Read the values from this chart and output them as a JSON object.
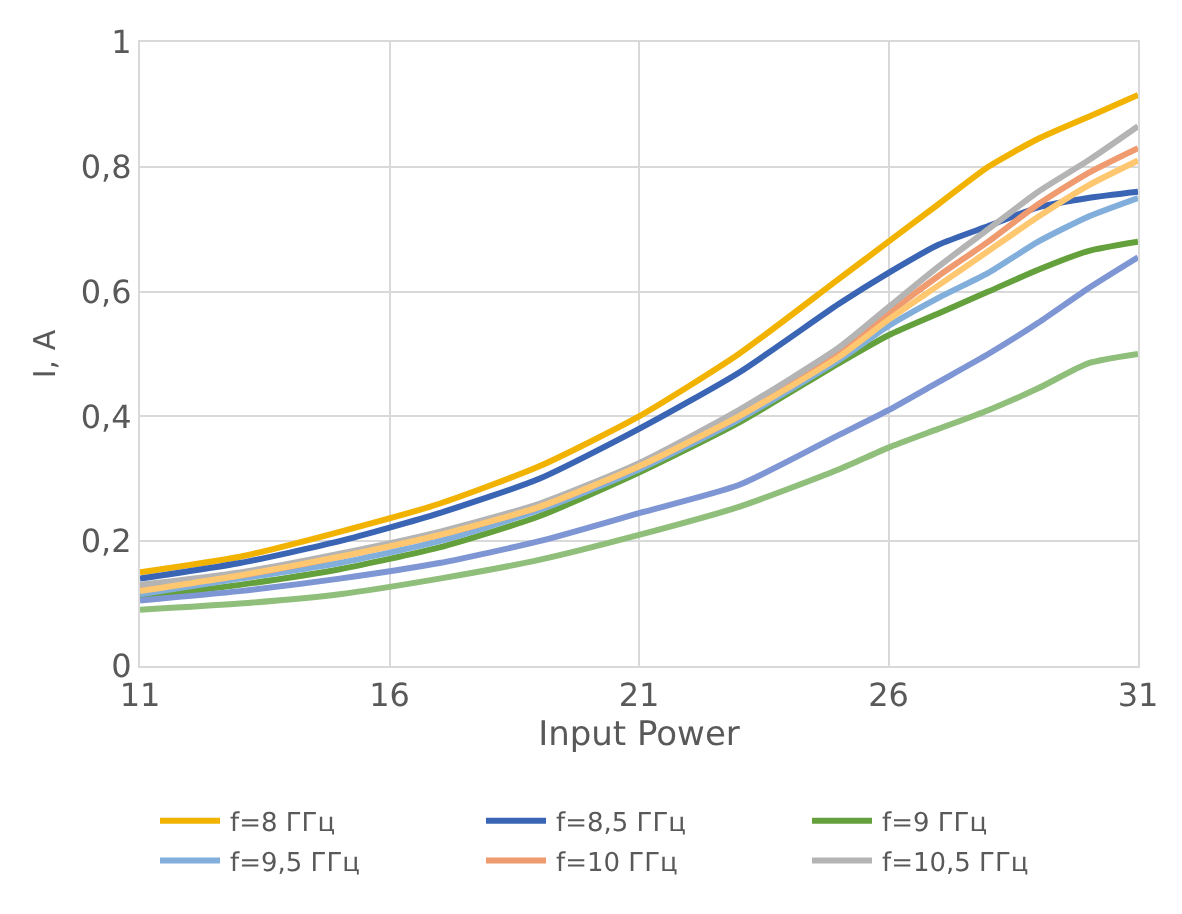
{
  "chart_data": {
    "type": "line",
    "xlabel": "Input Power",
    "ylabel": "I, A",
    "x": [
      11,
      13,
      15,
      17,
      19,
      21,
      23,
      25,
      26,
      27,
      28,
      29,
      30,
      31
    ],
    "xlim": [
      11,
      31
    ],
    "xticks": [
      11,
      16,
      21,
      26,
      31
    ],
    "ylim": [
      0,
      1
    ],
    "yticks": [
      0,
      {
        "value": 0.2,
        "label": "0,2"
      },
      {
        "value": 0.4,
        "label": "0,4"
      },
      {
        "value": 0.6,
        "label": "0,6"
      },
      {
        "value": 0.8,
        "label": "0,8"
      },
      1
    ],
    "grid": true,
    "legend": "bottom",
    "marker": "none",
    "line_style": "solid",
    "series": [
      {
        "name": "f=8 ГГц",
        "color": "#f2b300",
        "values": [
          0.15,
          0.175,
          0.215,
          0.26,
          0.32,
          0.4,
          0.5,
          0.62,
          0.68,
          0.74,
          0.8,
          0.845,
          0.88,
          0.915
        ]
      },
      {
        "name": "f=8,5 ГГц",
        "color": "#3a64b4",
        "values": [
          0.14,
          0.165,
          0.2,
          0.245,
          0.3,
          0.38,
          0.47,
          0.58,
          0.63,
          0.675,
          0.705,
          0.735,
          0.75,
          0.76
        ]
      },
      {
        "name": "f=9 ГГц",
        "color": "#64a03c",
        "values": [
          0.11,
          0.13,
          0.155,
          0.19,
          0.24,
          0.31,
          0.39,
          0.485,
          0.53,
          0.565,
          0.6,
          0.635,
          0.665,
          0.68
        ]
      },
      {
        "name": "f=9,5 ГГц",
        "color": "#82aedc",
        "values": [
          0.115,
          0.14,
          0.165,
          0.2,
          0.25,
          0.315,
          0.395,
          0.49,
          0.545,
          0.59,
          0.63,
          0.68,
          0.72,
          0.75
        ]
      },
      {
        "name": "f=10 ГГц",
        "color": "#f09a70",
        "values": [
          0.125,
          0.145,
          0.175,
          0.21,
          0.255,
          0.32,
          0.4,
          0.5,
          0.565,
          0.625,
          0.68,
          0.74,
          0.79,
          0.83
        ]
      },
      {
        "name": "f=10,5 ГГц",
        "color": "#b4b4b4",
        "values": [
          0.13,
          0.15,
          0.18,
          0.215,
          0.26,
          0.325,
          0.41,
          0.51,
          0.575,
          0.64,
          0.7,
          0.76,
          0.81,
          0.865
        ]
      },
      {
        "color": "#ffc870",
        "values": [
          0.12,
          0.145,
          0.175,
          0.21,
          0.255,
          0.32,
          0.4,
          0.495,
          0.555,
          0.61,
          0.665,
          0.72,
          0.77,
          0.81
        ]
      },
      {
        "color": "#7f96d4",
        "values": [
          0.105,
          0.12,
          0.14,
          0.165,
          0.2,
          0.245,
          0.29,
          0.37,
          0.41,
          0.455,
          0.5,
          0.55,
          0.605,
          0.655
        ]
      },
      {
        "color": "#8fbf7a",
        "values": [
          0.09,
          0.1,
          0.115,
          0.14,
          0.17,
          0.21,
          0.255,
          0.315,
          0.35,
          0.38,
          0.41,
          0.445,
          0.485,
          0.5
        ]
      }
    ]
  }
}
